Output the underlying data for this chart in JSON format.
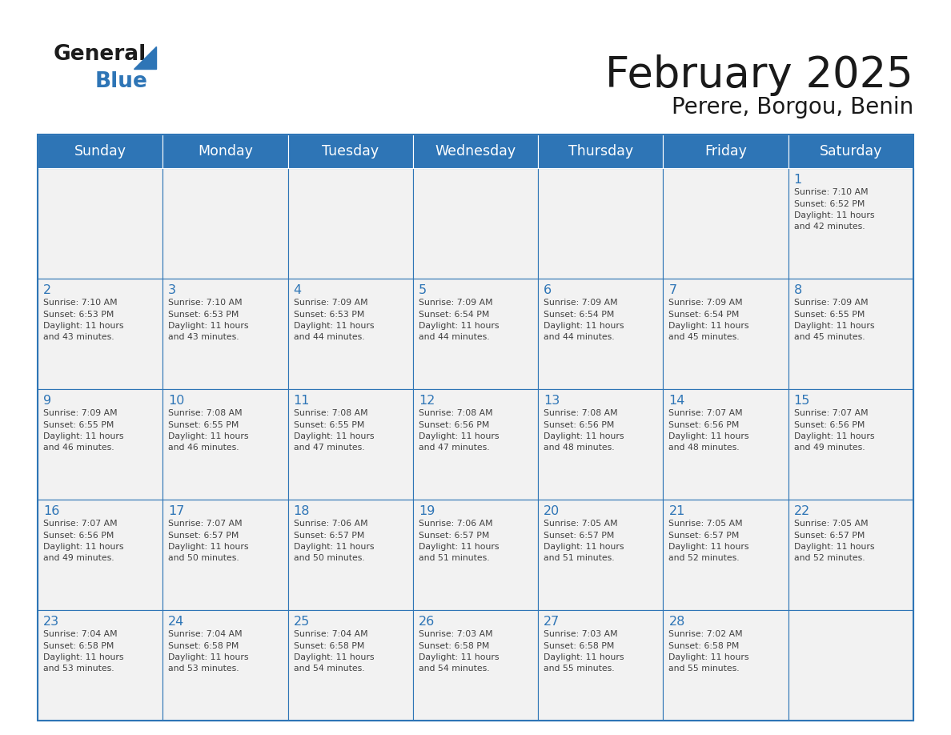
{
  "title": "February 2025",
  "subtitle": "Perere, Borgou, Benin",
  "days_of_week": [
    "Sunday",
    "Monday",
    "Tuesday",
    "Wednesday",
    "Thursday",
    "Friday",
    "Saturday"
  ],
  "header_bg": "#2E75B6",
  "header_text": "#FFFFFF",
  "cell_bg_light": "#F2F2F2",
  "border_color": "#2E75B6",
  "day_number_color": "#2E75B6",
  "text_color": "#404040",
  "title_color": "#1a1a1a",
  "weeks": [
    [
      null,
      null,
      null,
      null,
      null,
      null,
      1
    ],
    [
      2,
      3,
      4,
      5,
      6,
      7,
      8
    ],
    [
      9,
      10,
      11,
      12,
      13,
      14,
      15
    ],
    [
      16,
      17,
      18,
      19,
      20,
      21,
      22
    ],
    [
      23,
      24,
      25,
      26,
      27,
      28,
      null
    ]
  ],
  "cell_data": {
    "1": {
      "sunrise": "7:10 AM",
      "sunset": "6:52 PM",
      "daylight_hours": 11,
      "daylight_minutes": 42
    },
    "2": {
      "sunrise": "7:10 AM",
      "sunset": "6:53 PM",
      "daylight_hours": 11,
      "daylight_minutes": 43
    },
    "3": {
      "sunrise": "7:10 AM",
      "sunset": "6:53 PM",
      "daylight_hours": 11,
      "daylight_minutes": 43
    },
    "4": {
      "sunrise": "7:09 AM",
      "sunset": "6:53 PM",
      "daylight_hours": 11,
      "daylight_minutes": 44
    },
    "5": {
      "sunrise": "7:09 AM",
      "sunset": "6:54 PM",
      "daylight_hours": 11,
      "daylight_minutes": 44
    },
    "6": {
      "sunrise": "7:09 AM",
      "sunset": "6:54 PM",
      "daylight_hours": 11,
      "daylight_minutes": 44
    },
    "7": {
      "sunrise": "7:09 AM",
      "sunset": "6:54 PM",
      "daylight_hours": 11,
      "daylight_minutes": 45
    },
    "8": {
      "sunrise": "7:09 AM",
      "sunset": "6:55 PM",
      "daylight_hours": 11,
      "daylight_minutes": 45
    },
    "9": {
      "sunrise": "7:09 AM",
      "sunset": "6:55 PM",
      "daylight_hours": 11,
      "daylight_minutes": 46
    },
    "10": {
      "sunrise": "7:08 AM",
      "sunset": "6:55 PM",
      "daylight_hours": 11,
      "daylight_minutes": 46
    },
    "11": {
      "sunrise": "7:08 AM",
      "sunset": "6:55 PM",
      "daylight_hours": 11,
      "daylight_minutes": 47
    },
    "12": {
      "sunrise": "7:08 AM",
      "sunset": "6:56 PM",
      "daylight_hours": 11,
      "daylight_minutes": 47
    },
    "13": {
      "sunrise": "7:08 AM",
      "sunset": "6:56 PM",
      "daylight_hours": 11,
      "daylight_minutes": 48
    },
    "14": {
      "sunrise": "7:07 AM",
      "sunset": "6:56 PM",
      "daylight_hours": 11,
      "daylight_minutes": 48
    },
    "15": {
      "sunrise": "7:07 AM",
      "sunset": "6:56 PM",
      "daylight_hours": 11,
      "daylight_minutes": 49
    },
    "16": {
      "sunrise": "7:07 AM",
      "sunset": "6:56 PM",
      "daylight_hours": 11,
      "daylight_minutes": 49
    },
    "17": {
      "sunrise": "7:07 AM",
      "sunset": "6:57 PM",
      "daylight_hours": 11,
      "daylight_minutes": 50
    },
    "18": {
      "sunrise": "7:06 AM",
      "sunset": "6:57 PM",
      "daylight_hours": 11,
      "daylight_minutes": 50
    },
    "19": {
      "sunrise": "7:06 AM",
      "sunset": "6:57 PM",
      "daylight_hours": 11,
      "daylight_minutes": 51
    },
    "20": {
      "sunrise": "7:05 AM",
      "sunset": "6:57 PM",
      "daylight_hours": 11,
      "daylight_minutes": 51
    },
    "21": {
      "sunrise": "7:05 AM",
      "sunset": "6:57 PM",
      "daylight_hours": 11,
      "daylight_minutes": 52
    },
    "22": {
      "sunrise": "7:05 AM",
      "sunset": "6:57 PM",
      "daylight_hours": 11,
      "daylight_minutes": 52
    },
    "23": {
      "sunrise": "7:04 AM",
      "sunset": "6:58 PM",
      "daylight_hours": 11,
      "daylight_minutes": 53
    },
    "24": {
      "sunrise": "7:04 AM",
      "sunset": "6:58 PM",
      "daylight_hours": 11,
      "daylight_minutes": 53
    },
    "25": {
      "sunrise": "7:04 AM",
      "sunset": "6:58 PM",
      "daylight_hours": 11,
      "daylight_minutes": 54
    },
    "26": {
      "sunrise": "7:03 AM",
      "sunset": "6:58 PM",
      "daylight_hours": 11,
      "daylight_minutes": 54
    },
    "27": {
      "sunrise": "7:03 AM",
      "sunset": "6:58 PM",
      "daylight_hours": 11,
      "daylight_minutes": 55
    },
    "28": {
      "sunrise": "7:02 AM",
      "sunset": "6:58 PM",
      "daylight_hours": 11,
      "daylight_minutes": 55
    }
  },
  "figsize": [
    11.88,
    9.18
  ],
  "dpi": 100
}
